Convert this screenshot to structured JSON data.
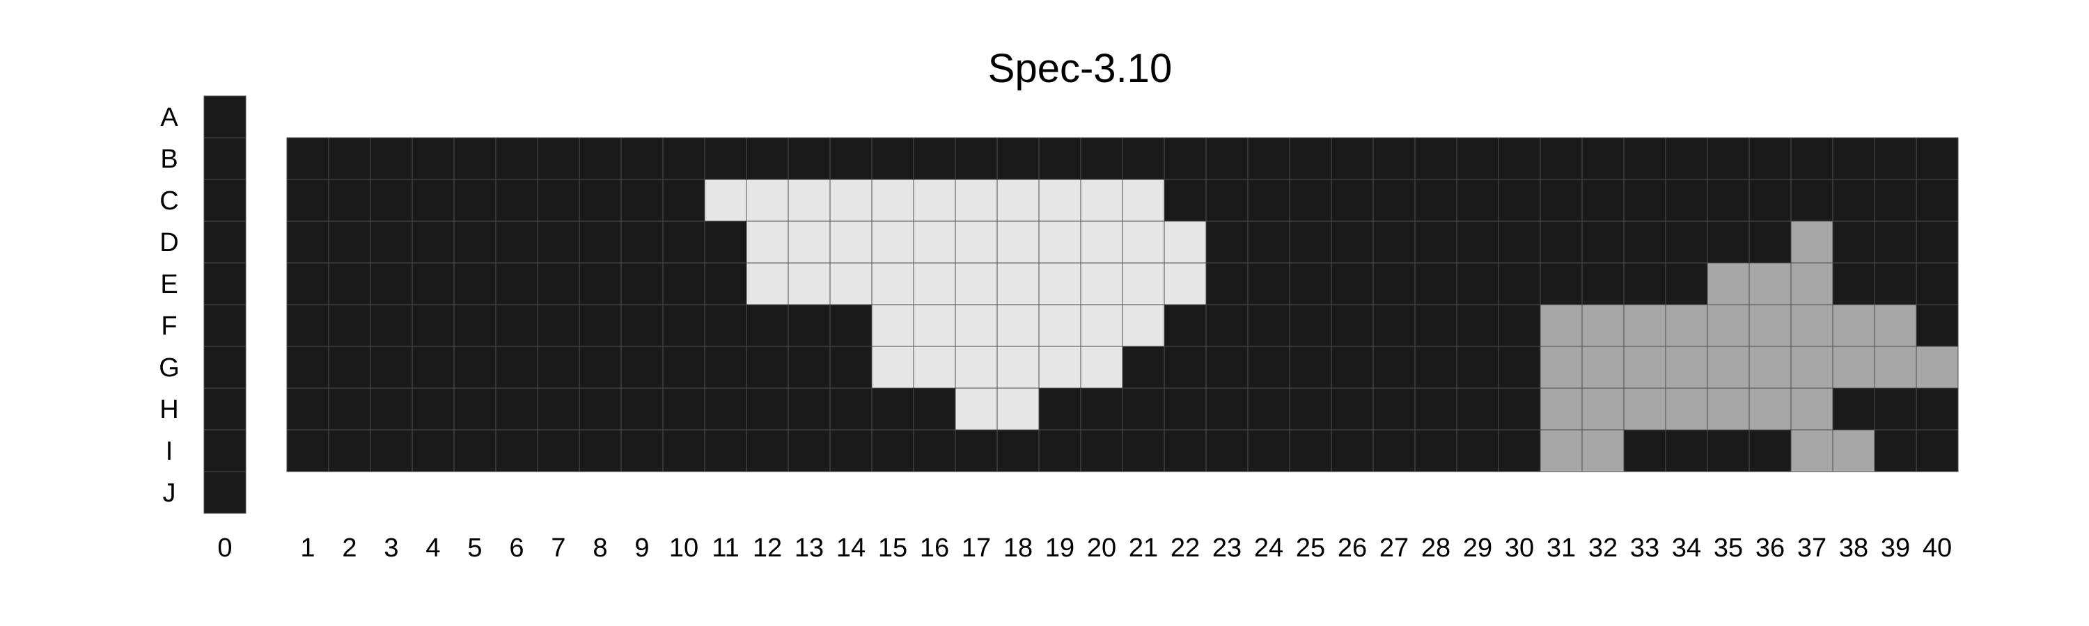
{
  "chart_data": {
    "type": "heatmap",
    "title": "Spec-3.10",
    "row_labels": [
      "A",
      "B",
      "C",
      "D",
      "E",
      "F",
      "G",
      "H",
      "I",
      "J"
    ],
    "column_labels": [
      "0",
      "1",
      "2",
      "3",
      "4",
      "5",
      "6",
      "7",
      "8",
      "9",
      "10",
      "11",
      "12",
      "13",
      "14",
      "15",
      "16",
      "17",
      "18",
      "19",
      "20",
      "21",
      "22",
      "23",
      "24",
      "25",
      "26",
      "27",
      "28",
      "29",
      "30",
      "31",
      "32",
      "33",
      "34",
      "35",
      "36",
      "37",
      "38",
      "39",
      "40"
    ],
    "column_0_rows": [
      "A",
      "B",
      "C",
      "D",
      "E",
      "F",
      "G",
      "H",
      "I",
      "J"
    ],
    "main_rows": [
      "B",
      "C",
      "D",
      "E",
      "F",
      "G",
      "H",
      "I"
    ],
    "value_legend": {
      "0": "dark",
      "1": "light region",
      "2": "gray region"
    },
    "colors": {
      "0": "#1a1a1a",
      "1": "#e6e6e6",
      "2": "#a6a6a6"
    },
    "grid": true,
    "column_0_values": [
      0,
      0,
      0,
      0,
      0,
      0,
      0,
      0,
      0,
      0
    ],
    "values": [
      [
        0,
        0,
        0,
        0,
        0,
        0,
        0,
        0,
        0,
        0,
        0,
        0,
        0,
        0,
        0,
        0,
        0,
        0,
        0,
        0,
        0,
        0,
        0,
        0,
        0,
        0,
        0,
        0,
        0,
        0,
        0,
        0,
        0,
        0,
        0,
        0,
        0,
        0,
        0,
        0
      ],
      [
        0,
        0,
        0,
        0,
        0,
        0,
        0,
        0,
        0,
        0,
        1,
        1,
        1,
        1,
        1,
        1,
        1,
        1,
        1,
        1,
        1,
        0,
        0,
        0,
        0,
        0,
        0,
        0,
        0,
        0,
        0,
        0,
        0,
        0,
        0,
        0,
        0,
        0,
        0,
        0
      ],
      [
        0,
        0,
        0,
        0,
        0,
        0,
        0,
        0,
        0,
        0,
        0,
        1,
        1,
        1,
        1,
        1,
        1,
        1,
        1,
        1,
        1,
        1,
        0,
        0,
        0,
        0,
        0,
        0,
        0,
        0,
        0,
        0,
        0,
        0,
        0,
        0,
        2,
        0,
        0,
        0
      ],
      [
        0,
        0,
        0,
        0,
        0,
        0,
        0,
        0,
        0,
        0,
        0,
        1,
        1,
        1,
        1,
        1,
        1,
        1,
        1,
        1,
        1,
        1,
        0,
        0,
        0,
        0,
        0,
        0,
        0,
        0,
        0,
        0,
        0,
        0,
        2,
        2,
        2,
        0,
        0,
        0
      ],
      [
        0,
        0,
        0,
        0,
        0,
        0,
        0,
        0,
        0,
        0,
        0,
        0,
        0,
        0,
        1,
        1,
        1,
        1,
        1,
        1,
        1,
        0,
        0,
        0,
        0,
        0,
        0,
        0,
        0,
        0,
        2,
        2,
        2,
        2,
        2,
        2,
        2,
        2,
        2,
        0
      ],
      [
        0,
        0,
        0,
        0,
        0,
        0,
        0,
        0,
        0,
        0,
        0,
        0,
        0,
        0,
        1,
        1,
        1,
        1,
        1,
        1,
        0,
        0,
        0,
        0,
        0,
        0,
        0,
        0,
        0,
        0,
        2,
        2,
        2,
        2,
        2,
        2,
        2,
        2,
        2,
        2
      ],
      [
        0,
        0,
        0,
        0,
        0,
        0,
        0,
        0,
        0,
        0,
        0,
        0,
        0,
        0,
        0,
        0,
        1,
        1,
        0,
        0,
        0,
        0,
        0,
        0,
        0,
        0,
        0,
        0,
        0,
        0,
        2,
        2,
        2,
        2,
        2,
        2,
        2,
        0,
        0,
        0
      ],
      [
        0,
        0,
        0,
        0,
        0,
        0,
        0,
        0,
        0,
        0,
        0,
        0,
        0,
        0,
        0,
        0,
        0,
        0,
        0,
        0,
        0,
        0,
        0,
        0,
        0,
        0,
        0,
        0,
        0,
        0,
        2,
        2,
        0,
        0,
        0,
        0,
        2,
        2,
        0,
        0
      ]
    ]
  }
}
